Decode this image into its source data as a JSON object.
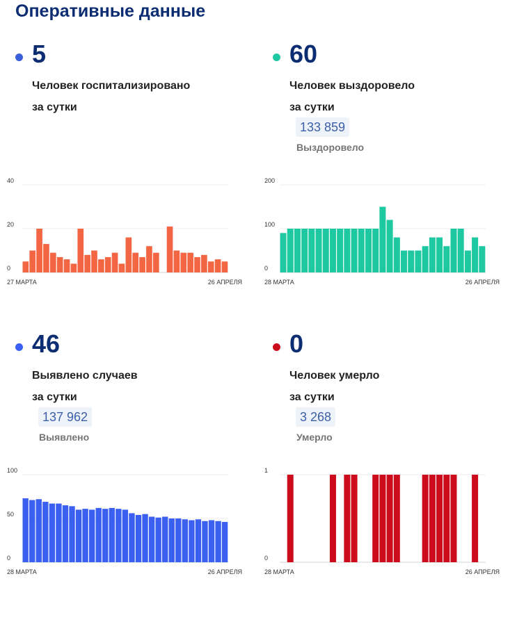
{
  "page": {
    "title": "Оперативные данные"
  },
  "panels": [
    {
      "id": "hospitalized",
      "value": "5",
      "desc_line1": "Человек госпитализировано",
      "desc_line2": "за сутки",
      "total": "",
      "total_label": "",
      "color": "#f26644",
      "dot_color": "#3b5fd9"
    },
    {
      "id": "recovered",
      "value": "60",
      "desc_line1": "Человек выздоровело",
      "desc_line2": "за сутки",
      "total": "133 859",
      "total_label": "Выздоровело",
      "color": "#1ec8a0",
      "dot_color": "#1ec8a0"
    },
    {
      "id": "cases",
      "value": "46",
      "desc_line1": "Выявлено случаев",
      "desc_line2": "за сутки",
      "total": "137 962",
      "total_label": "Выявлено",
      "color": "#3b5ff0",
      "dot_color": "#3b5ff0"
    },
    {
      "id": "deaths",
      "value": "0",
      "desc_line1": "Человек умерло",
      "desc_line2": "за сутки",
      "total": "3 268",
      "total_label": "Умерло",
      "color": "#cc0c1c",
      "dot_color": "#cc0c1c"
    }
  ],
  "chart_data": [
    {
      "type": "bar",
      "ylim": [
        0,
        40
      ],
      "yticks": [
        "0",
        "20",
        "40"
      ],
      "x_start_label": "27 МАРТА",
      "x_end_label": "26 АПРЕЛЯ",
      "values": [
        5,
        10,
        20,
        13,
        9,
        7,
        6,
        4,
        20,
        8,
        10,
        6,
        7,
        9,
        4,
        16,
        9,
        7,
        12,
        9,
        0,
        21,
        10,
        9,
        9,
        7,
        8,
        5,
        6,
        5
      ],
      "grid": true
    },
    {
      "type": "bar",
      "ylim": [
        0,
        200
      ],
      "yticks": [
        "0",
        "100",
        "200"
      ],
      "x_start_label": "28 МАРТА",
      "x_end_label": "26 АПРЕЛЯ",
      "values": [
        90,
        100,
        100,
        100,
        100,
        100,
        100,
        100,
        100,
        100,
        100,
        100,
        100,
        100,
        150,
        120,
        80,
        50,
        50,
        50,
        60,
        80,
        80,
        60,
        100,
        100,
        50,
        80,
        60
      ],
      "grid": true
    },
    {
      "type": "bar",
      "ylim": [
        0,
        100
      ],
      "yticks": [
        "0",
        "50",
        "100"
      ],
      "x_start_label": "28 МАРТА",
      "x_end_label": "26 АПРЕЛЯ",
      "values": [
        73,
        71,
        72,
        69,
        67,
        67,
        65,
        64,
        60,
        61,
        60,
        62,
        61,
        62,
        61,
        60,
        56,
        54,
        55,
        52,
        51,
        52,
        50,
        50,
        49,
        48,
        49,
        47,
        48,
        47,
        46
      ],
      "grid": true
    },
    {
      "type": "bar",
      "ylim": [
        0,
        1
      ],
      "yticks": [
        "0",
        "1"
      ],
      "x_start_label": "28 МАРТА",
      "x_end_label": "26 АПРЕЛЯ",
      "values": [
        0,
        1,
        0,
        0,
        0,
        0,
        0,
        1,
        0,
        1,
        1,
        0,
        0,
        1,
        1,
        1,
        1,
        0,
        0,
        0,
        1,
        1,
        1,
        1,
        1,
        0,
        0,
        1,
        0
      ],
      "grid": true
    }
  ]
}
